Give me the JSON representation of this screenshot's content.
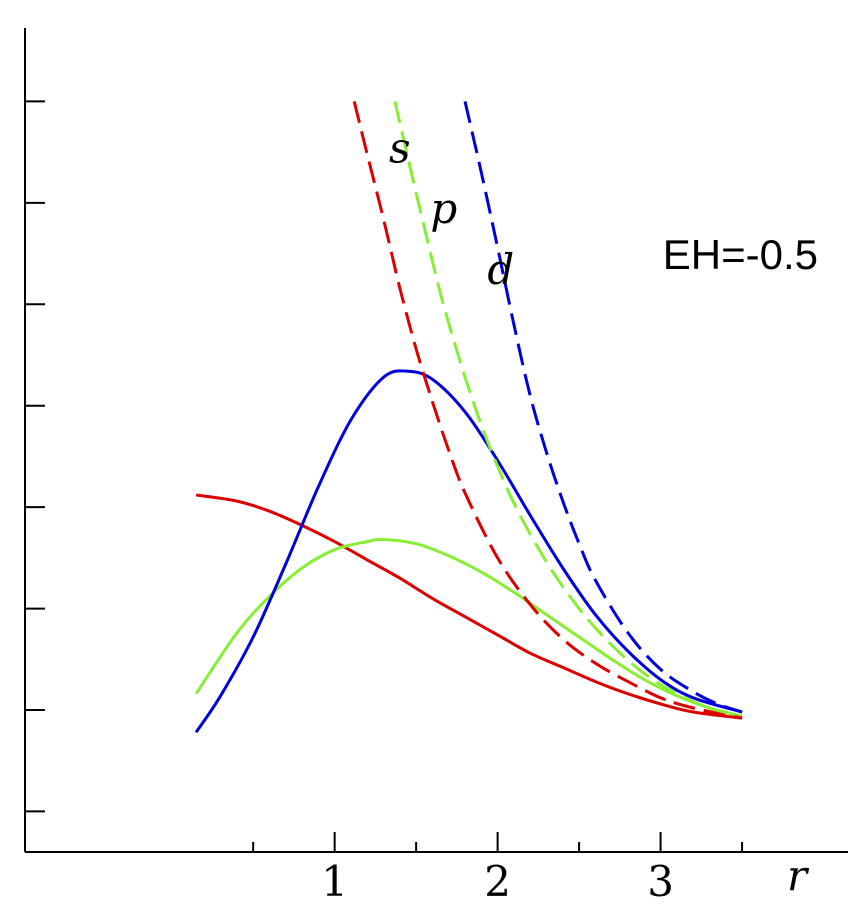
{
  "chart_data": {
    "type": "line",
    "annotation": "EH=-0.5",
    "xlabel": "r",
    "x_ticks": [
      {
        "value": 1,
        "label": "1"
      },
      {
        "value": 2,
        "label": "2"
      },
      {
        "value": 3,
        "label": "3"
      }
    ],
    "x_minor_ticks": [
      0.5,
      1.5,
      2.5,
      3.5
    ],
    "y_ticks": [
      0.5,
      1.0,
      1.5,
      2.0,
      2.5,
      3.0,
      3.5,
      4.0
    ],
    "xlim": [
      -0.9,
      4.15
    ],
    "ylim": [
      0.3,
      4.5
    ],
    "grid": false,
    "curve_labels": [
      {
        "text": "s",
        "x": 1.4,
        "y": 3.7
      },
      {
        "text": "p",
        "x": 1.67,
        "y": 3.4
      },
      {
        "text": "d",
        "x": 2.02,
        "y": 3.1
      }
    ],
    "series": [
      {
        "color": "#dd0000",
        "style": "solid",
        "x": [
          0.15,
          0.4,
          0.6,
          0.8,
          1.0,
          1.2,
          1.4,
          1.6,
          1.8,
          2.0,
          2.2,
          2.4,
          2.6,
          2.8,
          3.0,
          3.2,
          3.5
        ],
        "y": [
          2.06,
          2.03,
          1.98,
          1.91,
          1.83,
          1.74,
          1.65,
          1.55,
          1.46,
          1.37,
          1.28,
          1.21,
          1.14,
          1.08,
          1.03,
          0.99,
          0.96
        ]
      },
      {
        "color": "#88ee33",
        "style": "solid",
        "x": [
          0.15,
          0.4,
          0.6,
          0.8,
          1.0,
          1.2,
          1.3,
          1.5,
          1.7,
          1.9,
          2.1,
          2.3,
          2.5,
          2.7,
          2.9,
          3.1,
          3.3,
          3.5
        ],
        "y": [
          1.08,
          1.38,
          1.56,
          1.7,
          1.79,
          1.83,
          1.84,
          1.82,
          1.76,
          1.68,
          1.58,
          1.47,
          1.36,
          1.25,
          1.15,
          1.07,
          1.01,
          0.97
        ]
      },
      {
        "color": "#0000dd",
        "style": "solid",
        "x": [
          0.15,
          0.3,
          0.5,
          0.7,
          0.9,
          1.1,
          1.3,
          1.45,
          1.6,
          1.8,
          2.0,
          2.2,
          2.4,
          2.6,
          2.8,
          3.0,
          3.2,
          3.5
        ],
        "y": [
          0.89,
          1.07,
          1.36,
          1.72,
          2.1,
          2.43,
          2.64,
          2.67,
          2.63,
          2.47,
          2.23,
          1.96,
          1.7,
          1.47,
          1.29,
          1.15,
          1.06,
          0.99
        ]
      },
      {
        "color": "#dd0000",
        "style": "dashed",
        "x": [
          1.12,
          1.2,
          1.3,
          1.4,
          1.5,
          1.6,
          1.7,
          1.8,
          2.0,
          2.2,
          2.4,
          2.6,
          2.8,
          3.0,
          3.2,
          3.5
        ],
        "y": [
          4.0,
          3.74,
          3.42,
          3.08,
          2.78,
          2.52,
          2.28,
          2.07,
          1.75,
          1.52,
          1.35,
          1.23,
          1.14,
          1.06,
          1.01,
          0.96
        ]
      },
      {
        "color": "#88ee33",
        "style": "dashed",
        "x": [
          1.37,
          1.45,
          1.55,
          1.65,
          1.75,
          1.85,
          1.95,
          2.1,
          2.3,
          2.5,
          2.7,
          2.9,
          3.1,
          3.3,
          3.5
        ],
        "y": [
          4.0,
          3.72,
          3.38,
          3.05,
          2.77,
          2.52,
          2.3,
          2.02,
          1.73,
          1.5,
          1.32,
          1.18,
          1.08,
          1.01,
          0.97
        ]
      },
      {
        "color": "#0000dd",
        "style": "dashed",
        "x": [
          1.8,
          1.9,
          2.0,
          2.1,
          2.2,
          2.3,
          2.4,
          2.5,
          2.6,
          2.8,
          3.0,
          3.2,
          3.35,
          3.5
        ],
        "y": [
          4.0,
          3.65,
          3.28,
          2.9,
          2.55,
          2.27,
          2.03,
          1.82,
          1.64,
          1.38,
          1.2,
          1.09,
          1.03,
          0.99
        ]
      }
    ]
  }
}
